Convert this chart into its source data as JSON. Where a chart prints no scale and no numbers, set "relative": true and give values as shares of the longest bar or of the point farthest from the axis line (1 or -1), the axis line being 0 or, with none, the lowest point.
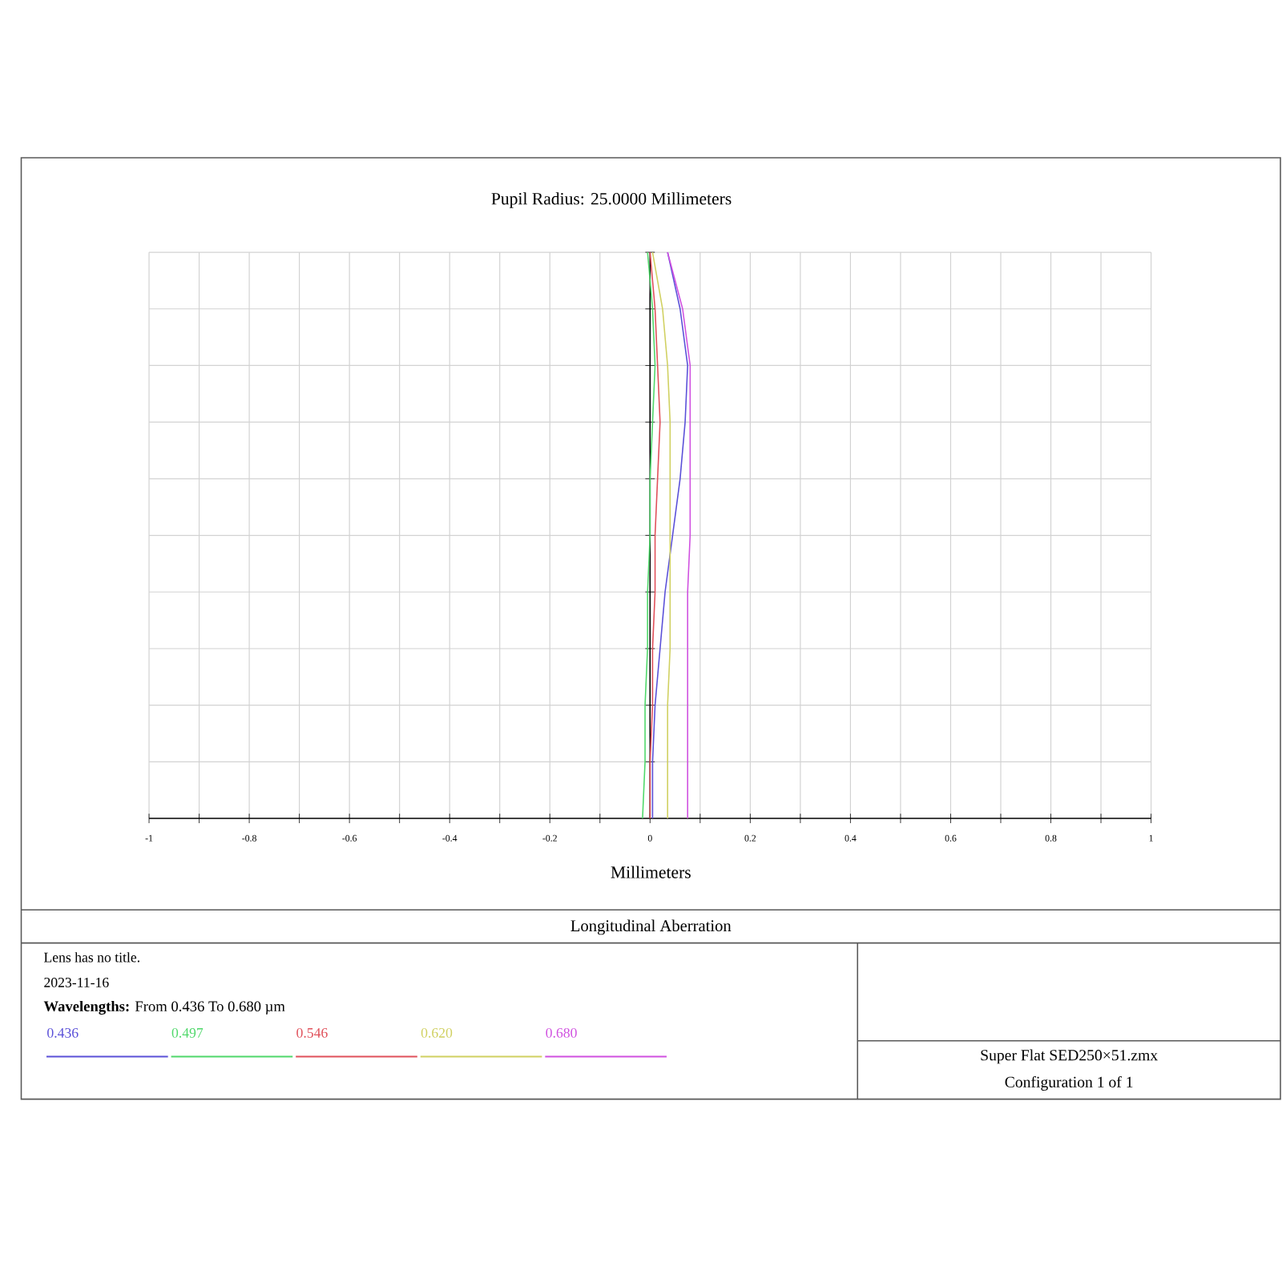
{
  "chart_data": {
    "type": "line",
    "title": "Pupil Radius: 25.0000 Millimeters",
    "xlabel": "Millimeters",
    "legend_title": "**Wavelengths:** From 0.436 To 0.680 µm",
    "xlim": [
      -1,
      1
    ],
    "xticks": [
      -1,
      {
        "value": -0.9,
        "label": null
      },
      -0.8,
      {
        "value": -0.7,
        "label": null
      },
      -0.6,
      {
        "value": -0.5,
        "label": null
      },
      -0.4,
      {
        "value": -0.3,
        "label": null
      },
      -0.2,
      {
        "value": -0.1,
        "label": null
      },
      0,
      {
        "value": 0.1,
        "label": null
      },
      0.2,
      {
        "value": 0.3,
        "label": null
      },
      0.4,
      {
        "value": 0.5,
        "label": null
      },
      0.6,
      {
        "value": 0.7,
        "label": null
      },
      0.8,
      {
        "value": 0.9,
        "label": null
      },
      1
    ],
    "relative": true,
    "tick_labels": "x",
    "grid": true,
    "legend": "bottom",
    "series": [
      {
        "name": "0.436",
        "color": "#5a50d8",
        "x": [
          0.005,
          0.005,
          0.01,
          0.02,
          0.03,
          0.045,
          0.06,
          0.07,
          0.075,
          0.06,
          0.035
        ],
        "values": [
          0,
          0.1,
          0.2,
          0.3,
          0.4,
          0.5,
          0.6,
          0.7,
          0.8,
          0.9,
          1
        ]
      },
      {
        "name": "0.497",
        "color": "#4fd86a",
        "x": [
          -0.015,
          -0.01,
          -0.01,
          -0.005,
          -0.005,
          0,
          0,
          0.005,
          0.01,
          0.005,
          -0.005
        ],
        "values": [
          0,
          0.1,
          0.2,
          0.3,
          0.4,
          0.5,
          0.6,
          0.7,
          0.8,
          0.9,
          1
        ]
      },
      {
        "name": "0.546",
        "color": "#e0505a",
        "x": [
          0,
          0,
          0.005,
          0.005,
          0.01,
          0.01,
          0.015,
          0.02,
          0.015,
          0.01,
          0
        ],
        "values": [
          0,
          0.1,
          0.2,
          0.3,
          0.4,
          0.5,
          0.6,
          0.7,
          0.8,
          0.9,
          1
        ]
      },
      {
        "name": "0.620",
        "color": "#d0d060",
        "x": [
          0.035,
          0.035,
          0.035,
          0.04,
          0.04,
          0.04,
          0.04,
          0.04,
          0.035,
          0.025,
          0.005
        ],
        "values": [
          0,
          0.1,
          0.2,
          0.3,
          0.4,
          0.5,
          0.6,
          0.7,
          0.8,
          0.9,
          1
        ]
      },
      {
        "name": "0.680",
        "color": "#d050e0",
        "x": [
          0.075,
          0.075,
          0.075,
          0.075,
          0.075,
          0.08,
          0.08,
          0.08,
          0.08,
          0.065,
          0.035
        ],
        "values": [
          0,
          0.1,
          0.2,
          0.3,
          0.4,
          0.5,
          0.6,
          0.7,
          0.8,
          0.9,
          1
        ]
      }
    ],
    "annotations": [
      "Longitudinal Aberration",
      "Lens has no title.",
      "2023-11-16",
      "Super Flat SED250×51.zmx",
      "Configuration 1 of 1"
    ]
  }
}
